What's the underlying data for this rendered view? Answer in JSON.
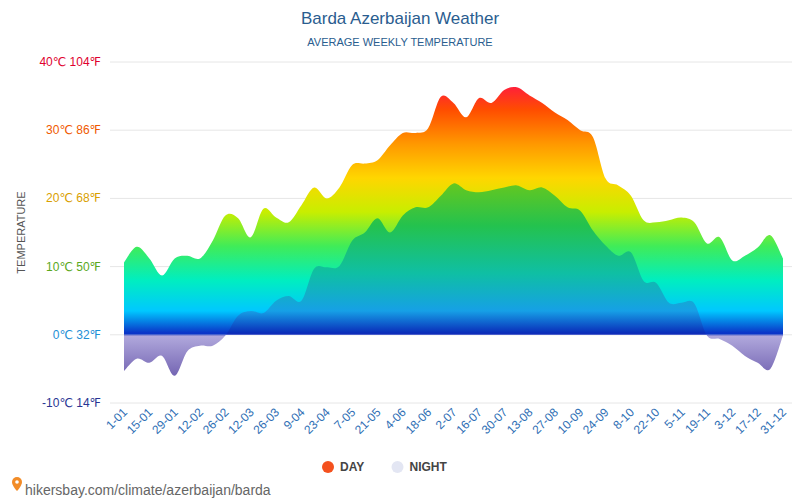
{
  "chart_data": {
    "type": "area",
    "title": "Barda Azerbaijan Weather",
    "subtitle": "AVERAGE WEEKLY TEMPERATURE",
    "ylabel": "TEMPERATURE",
    "source": "hikersbay.com/climate/azerbaijan/barda",
    "categories": [
      "1-01",
      null,
      "15-01",
      null,
      "29-01",
      null,
      "12-02",
      null,
      "26-02",
      null,
      "12-03",
      null,
      "26-03",
      null,
      "9-04",
      null,
      "23-04",
      null,
      "7-05",
      null,
      "21-05",
      null,
      "4-06",
      null,
      "18-06",
      null,
      "2-07",
      null,
      "16-07",
      null,
      "30-07",
      null,
      "13-08",
      null,
      "27-08",
      null,
      "10-09",
      null,
      "24-09",
      null,
      "8-10",
      null,
      "22-10",
      null,
      "5-11",
      null,
      "19-11",
      null,
      "3-12",
      null,
      "17-12",
      null,
      "31-12"
    ],
    "series": [
      {
        "name": "DAY",
        "color": "#f4511e",
        "values": [
          10.6,
          12.9,
          11.2,
          8.7,
          11.2,
          11.6,
          11.2,
          13.8,
          17.5,
          17.1,
          14.3,
          18.5,
          17.2,
          16.5,
          19,
          21.6,
          20,
          21.6,
          24.9,
          25.1,
          25.6,
          27.8,
          29.6,
          29.6,
          30.3,
          34.9,
          34,
          31.9,
          34.7,
          34,
          35.9,
          36.3,
          35.1,
          34,
          32.6,
          31.5,
          30,
          29,
          22.9,
          21.9,
          20.4,
          16.8,
          16.5,
          16.8,
          17.2,
          16.5,
          13.4,
          14.3,
          10.9,
          11.6,
          12.8,
          14.6,
          11.2
        ]
      },
      {
        "name": "NIGHT",
        "color": "#e3e6f3",
        "values": [
          -5.3,
          -3.5,
          -4.1,
          -3.1,
          -6,
          -2.4,
          -1.6,
          -1.6,
          -0.1,
          2.8,
          3.5,
          3.2,
          5,
          5.7,
          5,
          9.7,
          9.9,
          10.1,
          13.8,
          15,
          17.1,
          15,
          17.5,
          18.7,
          18.7,
          20.4,
          22.2,
          21.2,
          20.9,
          21.2,
          21.6,
          21.9,
          21.2,
          21.6,
          20.4,
          18.7,
          18.2,
          15.3,
          13.1,
          11.6,
          12.1,
          7.9,
          7.6,
          4.7,
          4.7,
          4.6,
          -0.1,
          -0.6,
          -1.6,
          -3.1,
          -4.1,
          -5,
          -0.1
        ]
      }
    ],
    "ylim": [
      -10,
      40
    ],
    "yticks": [
      {
        "value": -10,
        "label": "-10℃ 14℉"
      },
      {
        "value": 0,
        "label": "0℃ 32℉"
      },
      {
        "value": 10,
        "label": "10℃ 50℉"
      },
      {
        "value": 20,
        "label": "20℃ 68℉"
      },
      {
        "value": 30,
        "label": "30℃ 86℉"
      },
      {
        "value": 40,
        "label": "40℃ 104℉"
      }
    ],
    "grid": true,
    "legend": "bottom"
  }
}
